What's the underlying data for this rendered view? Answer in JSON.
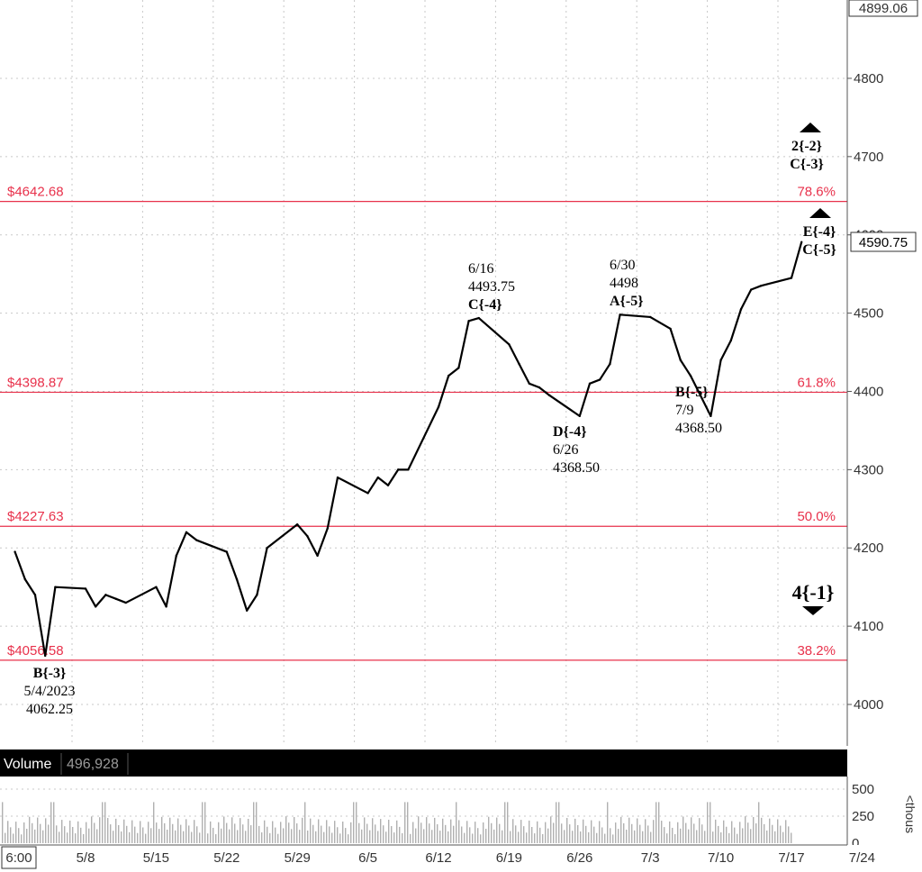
{
  "chart_data": {
    "type": "line",
    "title": "",
    "xlabel": "",
    "ylabel": "",
    "ylim": [
      3930,
      4910
    ],
    "x_tick_labels": [
      "5/8",
      "5/15",
      "5/22",
      "5/29",
      "6/5",
      "6/12",
      "6/19",
      "6/26",
      "7/3",
      "7/10",
      "7/17",
      "7/24"
    ],
    "y_ticks": [
      4000,
      4100,
      4200,
      4300,
      4400,
      4500,
      4600,
      4700,
      4800
    ],
    "y_tick_labels": [
      "4000",
      "4100",
      "4200",
      "4300",
      "4400",
      "4500",
      "4600",
      "4700",
      "4800"
    ],
    "top_price_label": "4899.06",
    "last_price_label": "4590.75",
    "start_time_label": "6:00",
    "grid": true,
    "series": [
      {
        "values_date_price": [
          [
            "5/1",
            4195
          ],
          [
            "5/2",
            4160
          ],
          [
            "5/3",
            4140
          ],
          [
            "5/4",
            4062.25
          ],
          [
            "5/5",
            4150
          ],
          [
            "5/8",
            4148
          ],
          [
            "5/9",
            4125
          ],
          [
            "5/10",
            4140
          ],
          [
            "5/11",
            4135
          ],
          [
            "5/12",
            4130
          ],
          [
            "5/15",
            4150
          ],
          [
            "5/16",
            4125
          ],
          [
            "5/17",
            4190
          ],
          [
            "5/18",
            4220
          ],
          [
            "5/19",
            4210
          ],
          [
            "5/22",
            4195
          ],
          [
            "5/23",
            4160
          ],
          [
            "5/24",
            4120
          ],
          [
            "5/25",
            4140
          ],
          [
            "5/26",
            4200
          ],
          [
            "5/29",
            4230
          ],
          [
            "5/30",
            4215
          ],
          [
            "5/31",
            4190
          ],
          [
            "6/1",
            4225
          ],
          [
            "6/2",
            4290
          ],
          [
            "6/5",
            4270
          ],
          [
            "6/6",
            4290
          ],
          [
            "6/7",
            4280
          ],
          [
            "6/8",
            4300
          ],
          [
            "6/9",
            4300
          ],
          [
            "6/12",
            4380
          ],
          [
            "6/13",
            4420
          ],
          [
            "6/14",
            4430
          ],
          [
            "6/15",
            4490
          ],
          [
            "6/16",
            4493.75
          ],
          [
            "6/19",
            4460
          ],
          [
            "6/20",
            4435
          ],
          [
            "6/21",
            4410
          ],
          [
            "6/22",
            4405
          ],
          [
            "6/23",
            4395
          ],
          [
            "6/26",
            4368.5
          ],
          [
            "6/27",
            4410
          ],
          [
            "6/28",
            4415
          ],
          [
            "6/29",
            4435
          ],
          [
            "6/30",
            4498
          ],
          [
            "7/3",
            4495
          ],
          [
            "7/5",
            4480
          ],
          [
            "7/6",
            4440
          ],
          [
            "7/7",
            4420
          ],
          [
            "7/9",
            4368.5
          ],
          [
            "7/10",
            4440
          ],
          [
            "7/11",
            4465
          ],
          [
            "7/12",
            4505
          ],
          [
            "7/13",
            4530
          ],
          [
            "7/14",
            4535
          ],
          [
            "7/17",
            4545
          ],
          [
            "7/18",
            4590.75
          ]
        ]
      }
    ],
    "fib_levels": [
      {
        "price": 4642.68,
        "price_label": "$4642.68",
        "pct_label": "78.6%"
      },
      {
        "price": 4398.87,
        "price_label": "$4398.87",
        "pct_label": "61.8%"
      },
      {
        "price": 4227.63,
        "price_label": "$4227.63",
        "pct_label": "50.0%"
      },
      {
        "price": 4056.58,
        "price_label": "$4056.58",
        "pct_label": "38.2%"
      }
    ],
    "annotations": [
      {
        "lines": [
          "B{-3}",
          "5/4/2023",
          "4062.25"
        ]
      },
      {
        "lines": [
          "6/16",
          "4493.75",
          "C{-4}"
        ]
      },
      {
        "lines": [
          "6/30",
          "4498",
          "A{-5}"
        ]
      },
      {
        "lines": [
          "D{-4}",
          "6/26",
          "4368.50"
        ]
      },
      {
        "lines": [
          "B{-5}",
          "7/9",
          "4368.50"
        ]
      },
      {
        "lines": [
          "2{-2}",
          "C{-3}"
        ]
      },
      {
        "lines": [
          "E{-4}",
          "C{-5}"
        ]
      },
      {
        "lines": [
          "4{-1}"
        ]
      }
    ],
    "volume": {
      "label": "Volume",
      "value": "496,928",
      "y_ticks": [
        0,
        250,
        500
      ],
      "y_tick_labels": [
        "0",
        "250",
        "500"
      ],
      "unit_label": "<thous"
    }
  },
  "colors": {
    "price": "#000000",
    "fib": "#e8314b",
    "grid": "#c8c8c8",
    "volume_bar": "#b0b0b0",
    "volume_header": "#000000"
  }
}
